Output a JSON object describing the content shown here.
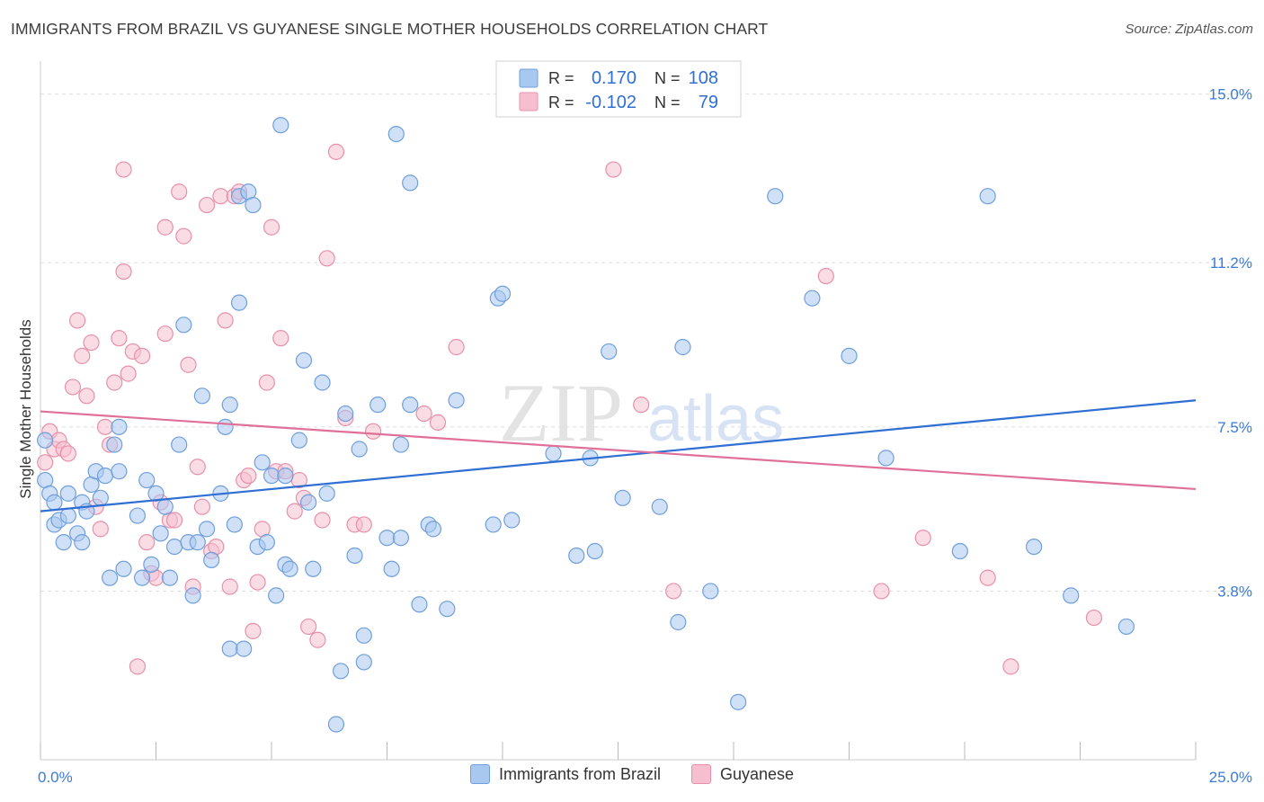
{
  "title": "IMMIGRANTS FROM BRAZIL VS GUYANESE SINGLE MOTHER HOUSEHOLDS CORRELATION CHART",
  "source": "Source: ZipAtlas.com",
  "watermark": {
    "zip": "ZIP",
    "atlas": "atlas"
  },
  "legend_top": {
    "r_label": "R =",
    "n_label": "N =",
    "rows": [
      {
        "r": "0.170",
        "n": "108"
      },
      {
        "r": "-0.102",
        "n": "79"
      }
    ]
  },
  "colors": {
    "blue_fill": "#a9c8f0",
    "blue_stroke": "#6f9fdc",
    "blue_line": "#2f6fd4",
    "pink_fill": "#f6bfd0",
    "pink_stroke": "#e890aa",
    "pink_line": "#e0709a",
    "tick_label": "#3b7bd6",
    "grid": "#dedede"
  },
  "chart_data": {
    "type": "scatter",
    "title": "IMMIGRANTS FROM BRAZIL VS GUYANESE SINGLE MOTHER HOUSEHOLDS CORRELATION CHART",
    "xlabel": "",
    "ylabel": "Single Mother Households",
    "xlim": [
      0,
      25
    ],
    "ylim": [
      0,
      15.5
    ],
    "x_tick_labels": [
      "0.0%",
      "25.0%"
    ],
    "y_ticks": [
      3.8,
      7.5,
      11.2,
      15.0
    ],
    "y_tick_labels": [
      "3.8%",
      "7.5%",
      "11.2%",
      "15.0%"
    ],
    "grid": true,
    "legend_position": "top-center",
    "series": [
      {
        "name": "Immigrants from Brazil",
        "color": "#a9c8f0",
        "trend": {
          "x": [
            0,
            25
          ],
          "y": [
            5.6,
            8.1
          ]
        },
        "points": [
          [
            0.1,
            6.3
          ],
          [
            0.1,
            7.2
          ],
          [
            0.2,
            6.0
          ],
          [
            0.3,
            5.8
          ],
          [
            0.3,
            5.3
          ],
          [
            0.4,
            5.4
          ],
          [
            0.5,
            4.9
          ],
          [
            0.6,
            6.0
          ],
          [
            0.6,
            5.5
          ],
          [
            0.8,
            5.1
          ],
          [
            0.9,
            5.8
          ],
          [
            0.9,
            4.9
          ],
          [
            1.0,
            5.6
          ],
          [
            1.1,
            6.2
          ],
          [
            1.2,
            6.5
          ],
          [
            1.3,
            5.9
          ],
          [
            1.4,
            6.4
          ],
          [
            1.5,
            4.1
          ],
          [
            1.6,
            7.1
          ],
          [
            1.7,
            6.5
          ],
          [
            1.7,
            7.5
          ],
          [
            1.8,
            4.3
          ],
          [
            2.1,
            5.5
          ],
          [
            2.2,
            4.1
          ],
          [
            2.3,
            6.3
          ],
          [
            2.4,
            4.4
          ],
          [
            2.5,
            6.0
          ],
          [
            2.6,
            5.1
          ],
          [
            2.7,
            5.7
          ],
          [
            2.8,
            4.1
          ],
          [
            2.9,
            4.8
          ],
          [
            3.0,
            7.1
          ],
          [
            3.1,
            9.8
          ],
          [
            3.2,
            4.9
          ],
          [
            3.3,
            3.7
          ],
          [
            3.4,
            4.9
          ],
          [
            3.5,
            8.2
          ],
          [
            3.6,
            5.2
          ],
          [
            3.7,
            4.5
          ],
          [
            3.9,
            6.0
          ],
          [
            4.0,
            7.5
          ],
          [
            4.1,
            8.0
          ],
          [
            4.1,
            2.5
          ],
          [
            4.2,
            5.3
          ],
          [
            4.3,
            10.3
          ],
          [
            4.3,
            12.7
          ],
          [
            4.4,
            2.5
          ],
          [
            4.5,
            12.8
          ],
          [
            4.6,
            12.5
          ],
          [
            4.7,
            4.8
          ],
          [
            4.8,
            6.7
          ],
          [
            4.9,
            4.9
          ],
          [
            5.0,
            6.4
          ],
          [
            5.1,
            3.7
          ],
          [
            5.2,
            14.3
          ],
          [
            5.3,
            4.4
          ],
          [
            5.3,
            6.4
          ],
          [
            5.4,
            4.3
          ],
          [
            5.6,
            7.2
          ],
          [
            5.7,
            9.0
          ],
          [
            5.8,
            5.8
          ],
          [
            5.9,
            4.3
          ],
          [
            6.1,
            8.5
          ],
          [
            6.2,
            6.0
          ],
          [
            6.4,
            0.8
          ],
          [
            6.5,
            2.0
          ],
          [
            6.6,
            7.8
          ],
          [
            6.8,
            4.6
          ],
          [
            6.9,
            7.0
          ],
          [
            7.0,
            2.8
          ],
          [
            7.0,
            2.2
          ],
          [
            7.3,
            8.0
          ],
          [
            7.5,
            5.0
          ],
          [
            7.6,
            4.3
          ],
          [
            7.7,
            14.1
          ],
          [
            7.8,
            7.1
          ],
          [
            7.8,
            5.0
          ],
          [
            8.0,
            8.0
          ],
          [
            8.0,
            13.0
          ],
          [
            8.2,
            3.5
          ],
          [
            8.4,
            5.3
          ],
          [
            8.5,
            5.2
          ],
          [
            8.8,
            3.4
          ],
          [
            9.0,
            8.1
          ],
          [
            9.8,
            5.3
          ],
          [
            9.9,
            10.4
          ],
          [
            10.0,
            10.5
          ],
          [
            10.2,
            5.4
          ],
          [
            11.1,
            6.9
          ],
          [
            11.6,
            4.6
          ],
          [
            11.9,
            6.8
          ],
          [
            12.0,
            4.7
          ],
          [
            12.3,
            9.2
          ],
          [
            12.6,
            5.9
          ],
          [
            13.4,
            5.7
          ],
          [
            13.8,
            3.1
          ],
          [
            13.9,
            9.3
          ],
          [
            14.5,
            3.8
          ],
          [
            15.1,
            1.3
          ],
          [
            15.9,
            12.7
          ],
          [
            16.7,
            10.4
          ],
          [
            17.5,
            9.1
          ],
          [
            18.3,
            6.8
          ],
          [
            19.9,
            4.7
          ],
          [
            20.5,
            12.7
          ],
          [
            21.5,
            4.8
          ],
          [
            22.3,
            3.7
          ],
          [
            23.5,
            3.0
          ]
        ]
      },
      {
        "name": "Guyanese",
        "color": "#f6bfd0",
        "trend": {
          "x": [
            0,
            25
          ],
          "y": [
            7.85,
            6.1
          ]
        },
        "points": [
          [
            0.1,
            6.7
          ],
          [
            0.2,
            7.4
          ],
          [
            0.3,
            7.0
          ],
          [
            0.4,
            7.2
          ],
          [
            0.5,
            7.0
          ],
          [
            0.6,
            6.9
          ],
          [
            0.7,
            8.4
          ],
          [
            0.8,
            9.9
          ],
          [
            0.9,
            9.1
          ],
          [
            1.0,
            8.2
          ],
          [
            1.1,
            9.4
          ],
          [
            1.2,
            5.7
          ],
          [
            1.3,
            5.2
          ],
          [
            1.4,
            7.5
          ],
          [
            1.5,
            7.1
          ],
          [
            1.6,
            8.5
          ],
          [
            1.7,
            9.5
          ],
          [
            1.8,
            11.0
          ],
          [
            1.8,
            13.3
          ],
          [
            1.9,
            8.7
          ],
          [
            2.0,
            9.2
          ],
          [
            2.1,
            2.1
          ],
          [
            2.2,
            9.1
          ],
          [
            2.3,
            4.9
          ],
          [
            2.4,
            4.2
          ],
          [
            2.5,
            4.1
          ],
          [
            2.6,
            5.8
          ],
          [
            2.7,
            9.6
          ],
          [
            2.7,
            12.0
          ],
          [
            2.8,
            5.4
          ],
          [
            2.9,
            5.4
          ],
          [
            3.0,
            12.8
          ],
          [
            3.1,
            11.8
          ],
          [
            3.2,
            8.9
          ],
          [
            3.3,
            3.9
          ],
          [
            3.4,
            6.6
          ],
          [
            3.5,
            5.7
          ],
          [
            3.6,
            12.5
          ],
          [
            3.7,
            4.7
          ],
          [
            3.8,
            4.8
          ],
          [
            3.9,
            12.7
          ],
          [
            4.0,
            9.9
          ],
          [
            4.1,
            3.9
          ],
          [
            4.2,
            12.7
          ],
          [
            4.3,
            12.8
          ],
          [
            4.4,
            6.3
          ],
          [
            4.5,
            6.4
          ],
          [
            4.6,
            2.9
          ],
          [
            4.7,
            4.0
          ],
          [
            4.8,
            5.2
          ],
          [
            4.9,
            8.5
          ],
          [
            5.0,
            12.0
          ],
          [
            5.1,
            6.5
          ],
          [
            5.2,
            9.5
          ],
          [
            5.3,
            6.5
          ],
          [
            5.5,
            5.6
          ],
          [
            5.6,
            6.3
          ],
          [
            5.7,
            5.9
          ],
          [
            5.8,
            3.0
          ],
          [
            6.0,
            2.7
          ],
          [
            6.1,
            5.4
          ],
          [
            6.2,
            11.3
          ],
          [
            6.4,
            13.7
          ],
          [
            6.6,
            7.7
          ],
          [
            6.8,
            5.3
          ],
          [
            7.0,
            5.3
          ],
          [
            7.2,
            7.4
          ],
          [
            8.3,
            7.8
          ],
          [
            8.6,
            7.6
          ],
          [
            9.0,
            9.3
          ],
          [
            12.4,
            13.3
          ],
          [
            13.0,
            8.0
          ],
          [
            13.7,
            3.8
          ],
          [
            17.0,
            10.9
          ],
          [
            18.2,
            3.8
          ],
          [
            19.1,
            5.0
          ],
          [
            20.5,
            4.1
          ],
          [
            21.0,
            2.1
          ],
          [
            22.8,
            3.2
          ]
        ]
      }
    ]
  }
}
